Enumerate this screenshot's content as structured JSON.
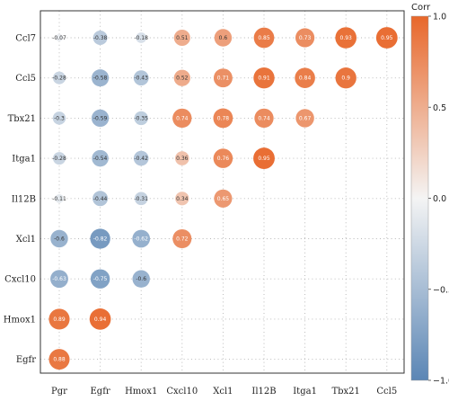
{
  "chart_data": {
    "type": "heatmap",
    "style": "correlation bubble matrix (lower-left triangle)",
    "x_categories": [
      "Pgr",
      "Egfr",
      "Hmox1",
      "Cxcl10",
      "Xcl1",
      "Il12B",
      "Itga1",
      "Tbx21",
      "Ccl5"
    ],
    "y_categories": [
      "Ccl7",
      "Ccl5",
      "Tbx21",
      "Itga1",
      "Il12B",
      "Xcl1",
      "Cxcl10",
      "Hmox1",
      "Egfr"
    ],
    "rows": [
      {
        "y": "Ccl7",
        "values": [
          -0.07,
          -0.38,
          -0.18,
          0.51,
          0.6,
          0.85,
          0.73,
          0.93,
          0.95
        ],
        "labels": [
          "-0.07",
          "-0.38",
          "-0.18",
          "0.51",
          "0.6",
          "0.85",
          "0.73",
          "0.93",
          "0.95"
        ]
      },
      {
        "y": "Ccl5",
        "values": [
          -0.28,
          -0.58,
          -0.43,
          0.52,
          0.71,
          0.91,
          0.84,
          0.9
        ],
        "labels": [
          "-0.28",
          "-0.58",
          "-0.43",
          "0.52",
          "0.71",
          "0.91",
          "0.84",
          "0.9"
        ]
      },
      {
        "y": "Tbx21",
        "values": [
          -0.3,
          -0.59,
          -0.35,
          0.74,
          0.78,
          0.74,
          0.67
        ],
        "labels": [
          "-0.3",
          "-0.59",
          "-0.35",
          "0.74",
          "0.78",
          "0.74",
          "0.67"
        ]
      },
      {
        "y": "Itga1",
        "values": [
          -0.28,
          -0.54,
          -0.42,
          0.36,
          0.76,
          0.95
        ],
        "labels": [
          "-0.28",
          "-0.54",
          "-0.42",
          "0.36",
          "0.76",
          "0.95"
        ]
      },
      {
        "y": "Il12B",
        "values": [
          -0.11,
          -0.44,
          -0.31,
          0.34,
          0.65
        ],
        "labels": [
          "-0.11",
          "-0.44",
          "-0.31",
          "0.34",
          "0.65"
        ]
      },
      {
        "y": "Xcl1",
        "values": [
          -0.6,
          -0.82,
          -0.62,
          0.72
        ],
        "labels": [
          "-0.6",
          "-0.82",
          "-0.62",
          "0.72"
        ]
      },
      {
        "y": "Cxcl10",
        "values": [
          -0.63,
          -0.75,
          -0.6
        ],
        "labels": [
          "-0.63",
          "-0.75",
          "-0.6"
        ]
      },
      {
        "y": "Hmox1",
        "values": [
          0.89,
          0.94
        ],
        "labels": [
          "0.89",
          "0.94"
        ]
      },
      {
        "y": "Egfr",
        "values": [
          0.88
        ],
        "labels": [
          "0.88"
        ]
      }
    ],
    "legend": {
      "title": "Corr",
      "ticks": [
        "1.0",
        "0.5",
        "0.0",
        "−0.5",
        "−1.0"
      ],
      "range": [
        -1,
        1
      ],
      "position": "right"
    },
    "grid": "dotted",
    "colors": {
      "positive": "#e8672a",
      "neutral": "#f4f4f4",
      "negative": "#5b86b5",
      "grid": "#b5b5b5",
      "frame": "#333333"
    }
  }
}
